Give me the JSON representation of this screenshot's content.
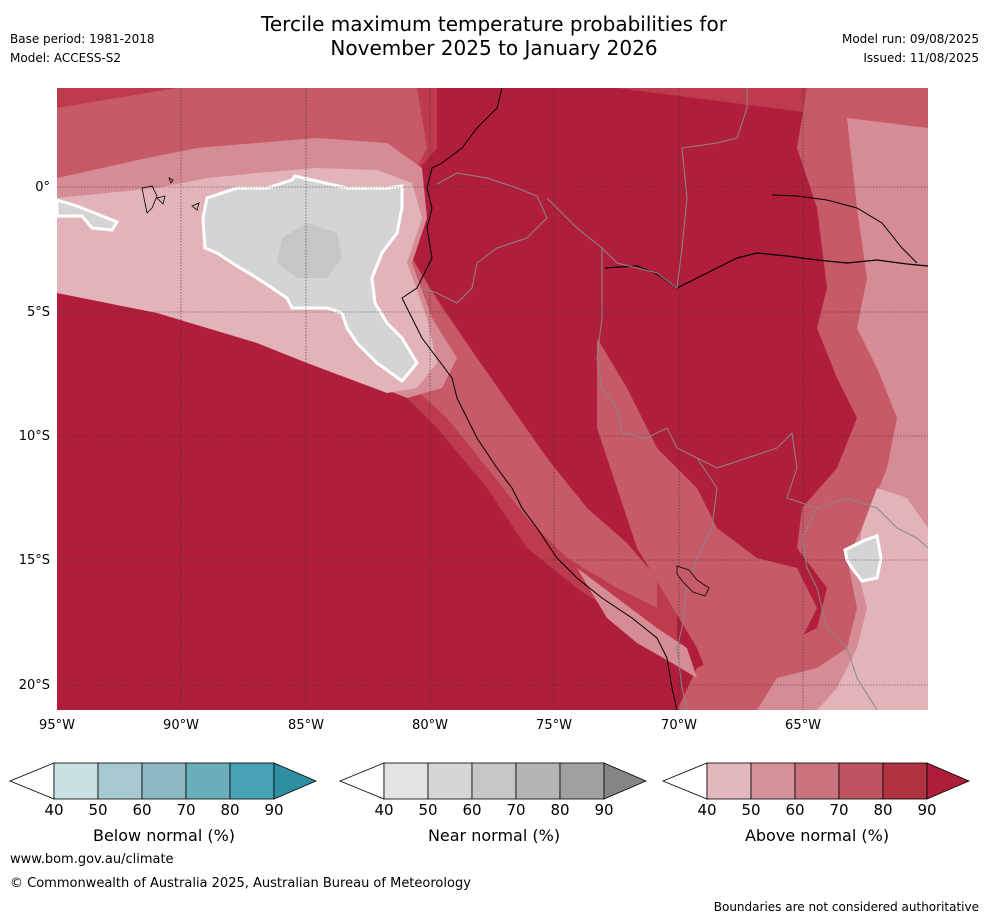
{
  "header": {
    "title_line1": "Tercile maximum temperature probabilities for",
    "title_line2": "November 2025 to January 2026",
    "base_period": "Base period: 1981-2018",
    "model": "Model: ACCESS-S2",
    "model_run": "Model run: 09/08/2025",
    "issued": "Issued: 11/08/2025"
  },
  "map": {
    "lat_ticks": [
      "0°",
      "5°S",
      "10°S",
      "15°S",
      "20°S"
    ],
    "lon_ticks": [
      "95°W",
      "90°W",
      "85°W",
      "80°W",
      "75°W",
      "70°W",
      "65°W"
    ]
  },
  "colorbars": [
    {
      "label": "Below normal (%)",
      "ticks": [
        "40",
        "50",
        "60",
        "70",
        "80",
        "90"
      ],
      "colors": [
        "#ffffff",
        "#c9e0e5",
        "#a8c9cf",
        "#8bb8c2",
        "#6aaebb",
        "#47a3b3",
        "#2e8fa3"
      ]
    },
    {
      "label": "Near normal (%)",
      "ticks": [
        "40",
        "50",
        "60",
        "70",
        "80",
        "90"
      ],
      "colors": [
        "#ffffff",
        "#e4e4e4",
        "#d6d6d6",
        "#c6c6c6",
        "#b5b5b5",
        "#a0a0a0",
        "#858585"
      ]
    },
    {
      "label": "Above normal (%)",
      "ticks": [
        "40",
        "50",
        "60",
        "70",
        "80",
        "90"
      ],
      "colors": [
        "#ffffff",
        "#e2b8be",
        "#d6929b",
        "#c9737e",
        "#be5461",
        "#b1323f",
        "#ad1e3a"
      ]
    }
  ],
  "footer": {
    "website": "www.bom.gov.au/climate",
    "copyright": "© Commonwealth of Australia 2025, Australian Bureau of Meteorology",
    "disclaimer": "Boundaries are not considered authoritative"
  }
}
